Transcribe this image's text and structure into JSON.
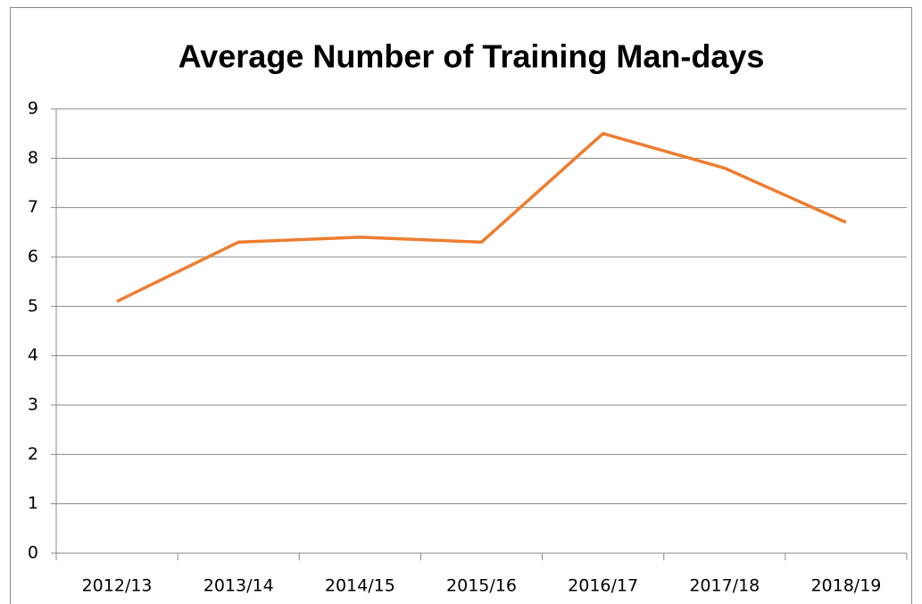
{
  "chart_data": {
    "type": "line",
    "title": "Average Number of Training Man-days",
    "categories": [
      "2012/13",
      "2013/14",
      "2014/15",
      "2015/16",
      "2016/17",
      "2017/18",
      "2018/19"
    ],
    "values": [
      5.1,
      6.3,
      6.4,
      6.3,
      8.5,
      7.8,
      6.7
    ],
    "color": "#ed7d31",
    "ylim": [
      0,
      9
    ],
    "yticks": [
      0,
      1,
      2,
      3,
      4,
      5,
      6,
      7,
      8,
      9
    ],
    "grid": true
  }
}
